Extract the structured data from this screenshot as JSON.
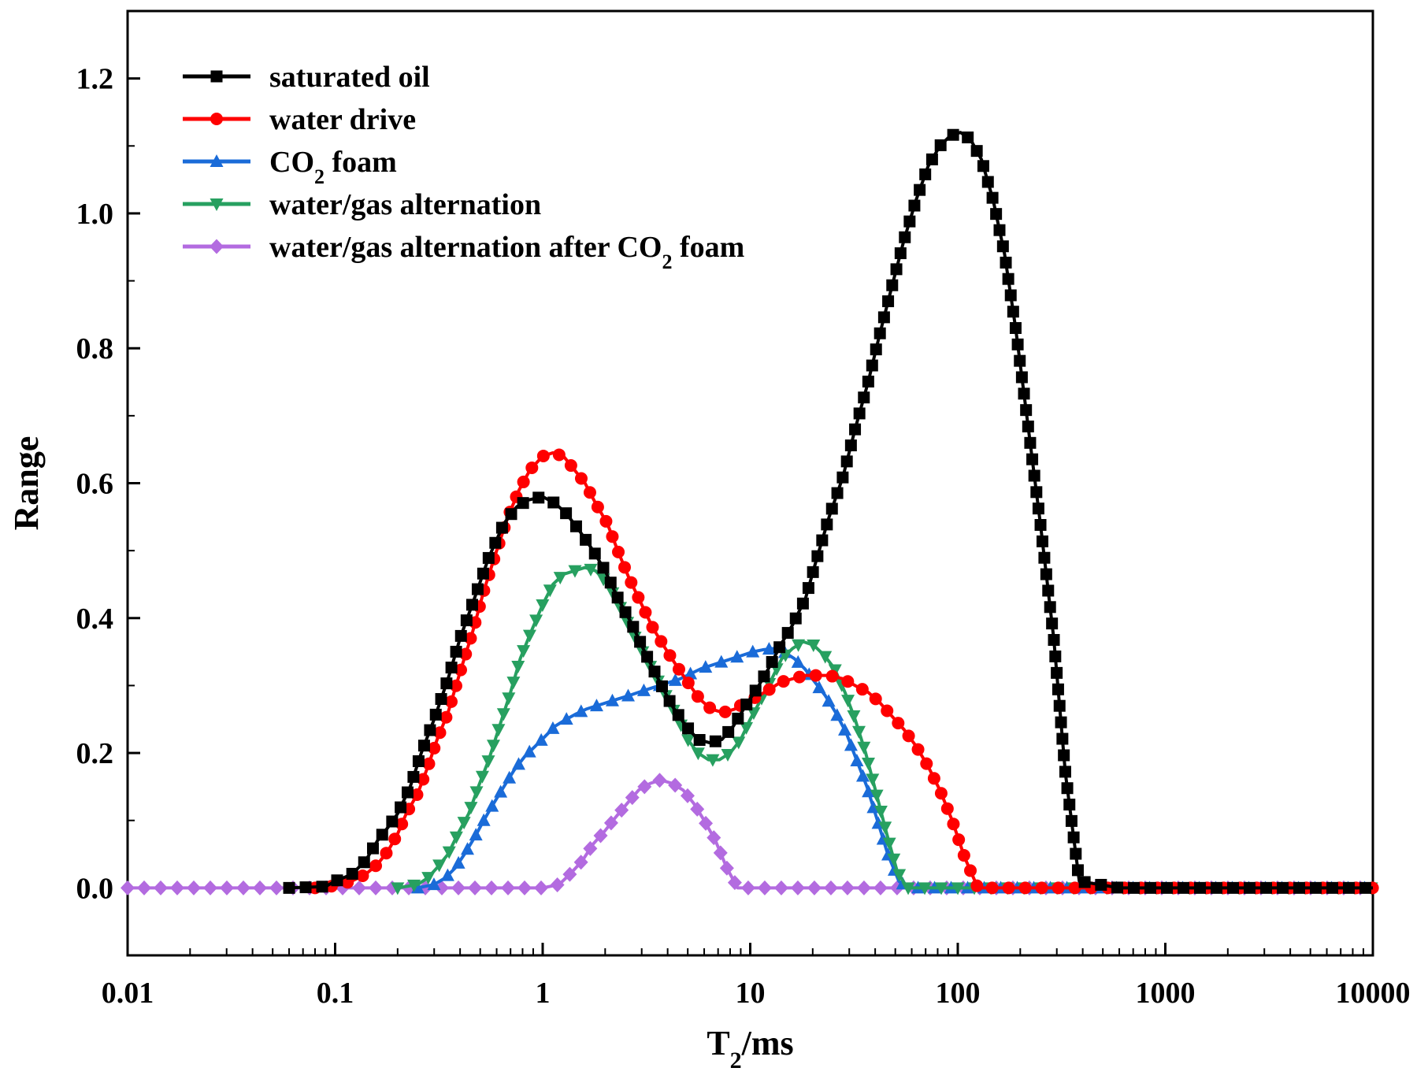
{
  "chart_data": {
    "type": "line",
    "title": "",
    "xlabel": {
      "base": "T",
      "sub": "2",
      "rest": "/ms"
    },
    "ylabel": "Range",
    "xscale": "log",
    "xlim": [
      0.01,
      10000
    ],
    "ylim": [
      -0.1,
      1.3
    ],
    "xticks": [
      {
        "value": 0.01,
        "label": "0.01"
      },
      {
        "value": 0.1,
        "label": "0.1"
      },
      {
        "value": 1,
        "label": "1"
      },
      {
        "value": 10,
        "label": "10"
      },
      {
        "value": 100,
        "label": "100"
      },
      {
        "value": 1000,
        "label": "1000"
      },
      {
        "value": 10000,
        "label": "10000"
      }
    ],
    "yticks": [
      {
        "value": 0.0,
        "label": "0.0"
      },
      {
        "value": 0.2,
        "label": "0.2"
      },
      {
        "value": 0.4,
        "label": "0.4"
      },
      {
        "value": 0.6,
        "label": "0.6"
      },
      {
        "value": 0.8,
        "label": "0.8"
      },
      {
        "value": 1.0,
        "label": "1.0"
      },
      {
        "value": 1.2,
        "label": "1.2"
      }
    ],
    "legend_position": "top-left",
    "series": [
      {
        "name": "saturated oil",
        "legend": [
          {
            "t": "saturated oil"
          }
        ],
        "color": "#000000",
        "marker": "square",
        "points": [
          [
            0.06,
            0.0
          ],
          [
            0.09,
            0.002
          ],
          [
            0.1,
            0.01
          ],
          [
            0.12,
            0.02
          ],
          [
            0.14,
            0.04
          ],
          [
            0.16,
            0.07
          ],
          [
            0.18,
            0.09
          ],
          [
            0.2,
            0.11
          ],
          [
            0.23,
            0.15
          ],
          [
            0.26,
            0.2
          ],
          [
            0.3,
            0.25
          ],
          [
            0.35,
            0.31
          ],
          [
            0.4,
            0.37
          ],
          [
            0.47,
            0.43
          ],
          [
            0.55,
            0.49
          ],
          [
            0.65,
            0.54
          ],
          [
            0.75,
            0.565
          ],
          [
            0.85,
            0.575
          ],
          [
            1.0,
            0.58
          ],
          [
            1.15,
            0.57
          ],
          [
            1.3,
            0.555
          ],
          [
            1.5,
            0.53
          ],
          [
            1.75,
            0.5
          ],
          [
            2.0,
            0.47
          ],
          [
            2.3,
            0.43
          ],
          [
            2.7,
            0.39
          ],
          [
            3.1,
            0.35
          ],
          [
            3.6,
            0.31
          ],
          [
            4.2,
            0.27
          ],
          [
            4.9,
            0.24
          ],
          [
            5.6,
            0.22
          ],
          [
            6.4,
            0.215
          ],
          [
            7.3,
            0.22
          ],
          [
            8.3,
            0.24
          ],
          [
            9.5,
            0.27
          ],
          [
            11,
            0.3
          ],
          [
            12.5,
            0.33
          ],
          [
            14,
            0.36
          ],
          [
            16,
            0.39
          ],
          [
            18.5,
            0.43
          ],
          [
            21,
            0.49
          ],
          [
            24,
            0.55
          ],
          [
            28,
            0.61
          ],
          [
            32,
            0.68
          ],
          [
            37,
            0.75
          ],
          [
            42,
            0.82
          ],
          [
            48,
            0.89
          ],
          [
            55,
            0.96
          ],
          [
            63,
            1.02
          ],
          [
            72,
            1.07
          ],
          [
            82,
            1.1
          ],
          [
            92,
            1.115
          ],
          [
            103,
            1.12
          ],
          [
            115,
            1.11
          ],
          [
            130,
            1.08
          ],
          [
            148,
            1.02
          ],
          [
            168,
            0.94
          ],
          [
            190,
            0.83
          ],
          [
            215,
            0.7
          ],
          [
            250,
            0.54
          ],
          [
            290,
            0.37
          ],
          [
            330,
            0.17
          ],
          [
            385,
            0.01
          ],
          [
            600,
            0.0
          ],
          [
            1000,
            0.0
          ],
          [
            2000,
            0.0
          ],
          [
            4000,
            0.0
          ],
          [
            10000,
            0.0
          ]
        ]
      },
      {
        "name": "water drive",
        "legend": [
          {
            "t": "water drive"
          }
        ],
        "color": "#ff0000",
        "marker": "circle",
        "points": [
          [
            0.08,
            0.0
          ],
          [
            0.1,
            0.003
          ],
          [
            0.12,
            0.01
          ],
          [
            0.14,
            0.02
          ],
          [
            0.16,
            0.035
          ],
          [
            0.18,
            0.055
          ],
          [
            0.2,
            0.08
          ],
          [
            0.22,
            0.11
          ],
          [
            0.25,
            0.14
          ],
          [
            0.28,
            0.18
          ],
          [
            0.31,
            0.22
          ],
          [
            0.35,
            0.26
          ],
          [
            0.4,
            0.32
          ],
          [
            0.46,
            0.38
          ],
          [
            0.52,
            0.44
          ],
          [
            0.6,
            0.5
          ],
          [
            0.68,
            0.55
          ],
          [
            0.77,
            0.59
          ],
          [
            0.87,
            0.62
          ],
          [
            1.0,
            0.64
          ],
          [
            1.12,
            0.645
          ],
          [
            1.26,
            0.64
          ],
          [
            1.42,
            0.62
          ],
          [
            1.6,
            0.6
          ],
          [
            1.8,
            0.57
          ],
          [
            2.05,
            0.54
          ],
          [
            2.3,
            0.5
          ],
          [
            2.6,
            0.46
          ],
          [
            3.0,
            0.42
          ],
          [
            3.4,
            0.385
          ],
          [
            3.9,
            0.355
          ],
          [
            4.4,
            0.33
          ],
          [
            5.0,
            0.305
          ],
          [
            5.7,
            0.28
          ],
          [
            6.5,
            0.265
          ],
          [
            7.4,
            0.26
          ],
          [
            8.4,
            0.265
          ],
          [
            9.5,
            0.275
          ],
          [
            11,
            0.285
          ],
          [
            12.5,
            0.295
          ],
          [
            14,
            0.305
          ],
          [
            16,
            0.31
          ],
          [
            18.5,
            0.315
          ],
          [
            21,
            0.315
          ],
          [
            24,
            0.315
          ],
          [
            28,
            0.31
          ],
          [
            32,
            0.3
          ],
          [
            37,
            0.29
          ],
          [
            42,
            0.275
          ],
          [
            48,
            0.255
          ],
          [
            55,
            0.235
          ],
          [
            63,
            0.21
          ],
          [
            72,
            0.18
          ],
          [
            82,
            0.145
          ],
          [
            94,
            0.1
          ],
          [
            108,
            0.045
          ],
          [
            125,
            0.0
          ],
          [
            200,
            0.0
          ],
          [
            500,
            0.0
          ],
          [
            1000,
            0.0
          ],
          [
            3000,
            0.0
          ],
          [
            10000,
            0.0
          ]
        ]
      },
      {
        "name": "CO2 foam",
        "legend": [
          {
            "t": "CO"
          },
          {
            "t": "2",
            "sub": true
          },
          {
            "t": " foam"
          }
        ],
        "color": "#1a6bd8",
        "marker": "triangle-up",
        "points": [
          [
            0.25,
            0.0
          ],
          [
            0.3,
            0.005
          ],
          [
            0.34,
            0.015
          ],
          [
            0.38,
            0.03
          ],
          [
            0.42,
            0.05
          ],
          [
            0.47,
            0.075
          ],
          [
            0.52,
            0.1
          ],
          [
            0.58,
            0.125
          ],
          [
            0.65,
            0.15
          ],
          [
            0.73,
            0.175
          ],
          [
            0.82,
            0.195
          ],
          [
            0.92,
            0.21
          ],
          [
            1.03,
            0.225
          ],
          [
            1.15,
            0.24
          ],
          [
            1.3,
            0.25
          ],
          [
            1.45,
            0.258
          ],
          [
            1.62,
            0.265
          ],
          [
            1.82,
            0.27
          ],
          [
            2.05,
            0.275
          ],
          [
            2.3,
            0.28
          ],
          [
            2.6,
            0.285
          ],
          [
            2.9,
            0.29
          ],
          [
            3.25,
            0.295
          ],
          [
            3.65,
            0.3
          ],
          [
            4.1,
            0.305
          ],
          [
            4.6,
            0.31
          ],
          [
            5.2,
            0.318
          ],
          [
            5.8,
            0.325
          ],
          [
            6.5,
            0.33
          ],
          [
            7.3,
            0.335
          ],
          [
            8.2,
            0.34
          ],
          [
            9.2,
            0.345
          ],
          [
            10.3,
            0.35
          ],
          [
            11.5,
            0.353
          ],
          [
            13,
            0.355
          ],
          [
            14.5,
            0.35
          ],
          [
            16.3,
            0.34
          ],
          [
            18.3,
            0.325
          ],
          [
            20.5,
            0.305
          ],
          [
            23,
            0.285
          ],
          [
            25.8,
            0.26
          ],
          [
            29,
            0.23
          ],
          [
            32.5,
            0.19
          ],
          [
            36.5,
            0.15
          ],
          [
            41,
            0.1
          ],
          [
            46,
            0.05
          ],
          [
            52,
            0.01
          ],
          [
            58,
            0.0
          ],
          [
            100,
            0.0
          ],
          [
            300,
            0.0
          ],
          [
            1000,
            0.0
          ],
          [
            3000,
            0.0
          ],
          [
            10000,
            0.0
          ]
        ]
      },
      {
        "name": "water/gas alternation",
        "legend": [
          {
            "t": "water/gas alternation"
          }
        ],
        "color": "#27a060",
        "marker": "triangle-down",
        "points": [
          [
            0.2,
            0.0
          ],
          [
            0.25,
            0.005
          ],
          [
            0.28,
            0.015
          ],
          [
            0.31,
            0.03
          ],
          [
            0.35,
            0.05
          ],
          [
            0.39,
            0.08
          ],
          [
            0.44,
            0.11
          ],
          [
            0.49,
            0.15
          ],
          [
            0.55,
            0.19
          ],
          [
            0.62,
            0.24
          ],
          [
            0.7,
            0.29
          ],
          [
            0.78,
            0.34
          ],
          [
            0.88,
            0.38
          ],
          [
            1.0,
            0.42
          ],
          [
            1.12,
            0.45
          ],
          [
            1.26,
            0.465
          ],
          [
            1.42,
            0.47
          ],
          [
            1.6,
            0.475
          ],
          [
            1.8,
            0.47
          ],
          [
            2.0,
            0.455
          ],
          [
            2.25,
            0.43
          ],
          [
            2.5,
            0.4
          ],
          [
            2.8,
            0.37
          ],
          [
            3.15,
            0.34
          ],
          [
            3.55,
            0.31
          ],
          [
            4.0,
            0.28
          ],
          [
            4.5,
            0.25
          ],
          [
            5.0,
            0.22
          ],
          [
            5.6,
            0.2
          ],
          [
            6.3,
            0.19
          ],
          [
            7.1,
            0.19
          ],
          [
            8.0,
            0.2
          ],
          [
            9.0,
            0.22
          ],
          [
            10,
            0.25
          ],
          [
            11.3,
            0.28
          ],
          [
            12.7,
            0.31
          ],
          [
            14.2,
            0.34
          ],
          [
            16,
            0.355
          ],
          [
            18,
            0.365
          ],
          [
            20.2,
            0.36
          ],
          [
            22.7,
            0.345
          ],
          [
            25.5,
            0.325
          ],
          [
            28.6,
            0.29
          ],
          [
            32,
            0.25
          ],
          [
            36,
            0.2
          ],
          [
            40.5,
            0.14
          ],
          [
            45.5,
            0.08
          ],
          [
            51,
            0.025
          ],
          [
            57,
            0.0
          ],
          [
            100,
            0.0
          ],
          [
            300,
            0.0
          ],
          [
            1000,
            0.0
          ],
          [
            3000,
            0.0
          ],
          [
            10000,
            0.0
          ]
        ]
      },
      {
        "name": "water/gas alternation after CO2 foam",
        "legend": [
          {
            "t": "water/gas alternation after CO"
          },
          {
            "t": "2",
            "sub": true
          },
          {
            "t": " foam"
          }
        ],
        "color": "#b36be0",
        "marker": "diamond",
        "points": [
          [
            0.01,
            0.0
          ],
          [
            0.02,
            0.0
          ],
          [
            0.05,
            0.0
          ],
          [
            0.1,
            0.0
          ],
          [
            0.2,
            0.0
          ],
          [
            0.5,
            0.0
          ],
          [
            1.0,
            0.0
          ],
          [
            1.2,
            0.005
          ],
          [
            1.35,
            0.02
          ],
          [
            1.55,
            0.04
          ],
          [
            1.75,
            0.065
          ],
          [
            2.0,
            0.085
          ],
          [
            2.25,
            0.105
          ],
          [
            2.55,
            0.125
          ],
          [
            2.9,
            0.145
          ],
          [
            3.3,
            0.155
          ],
          [
            3.7,
            0.16
          ],
          [
            4.2,
            0.155
          ],
          [
            4.75,
            0.145
          ],
          [
            5.35,
            0.125
          ],
          [
            6.0,
            0.1
          ],
          [
            6.8,
            0.07
          ],
          [
            7.7,
            0.03
          ],
          [
            8.7,
            0.0
          ],
          [
            10,
            0.0
          ],
          [
            30,
            0.0
          ],
          [
            100,
            0.0
          ],
          [
            300,
            0.0
          ],
          [
            1000,
            0.0
          ],
          [
            3000,
            0.0
          ],
          [
            10000,
            0.0
          ]
        ]
      }
    ]
  }
}
